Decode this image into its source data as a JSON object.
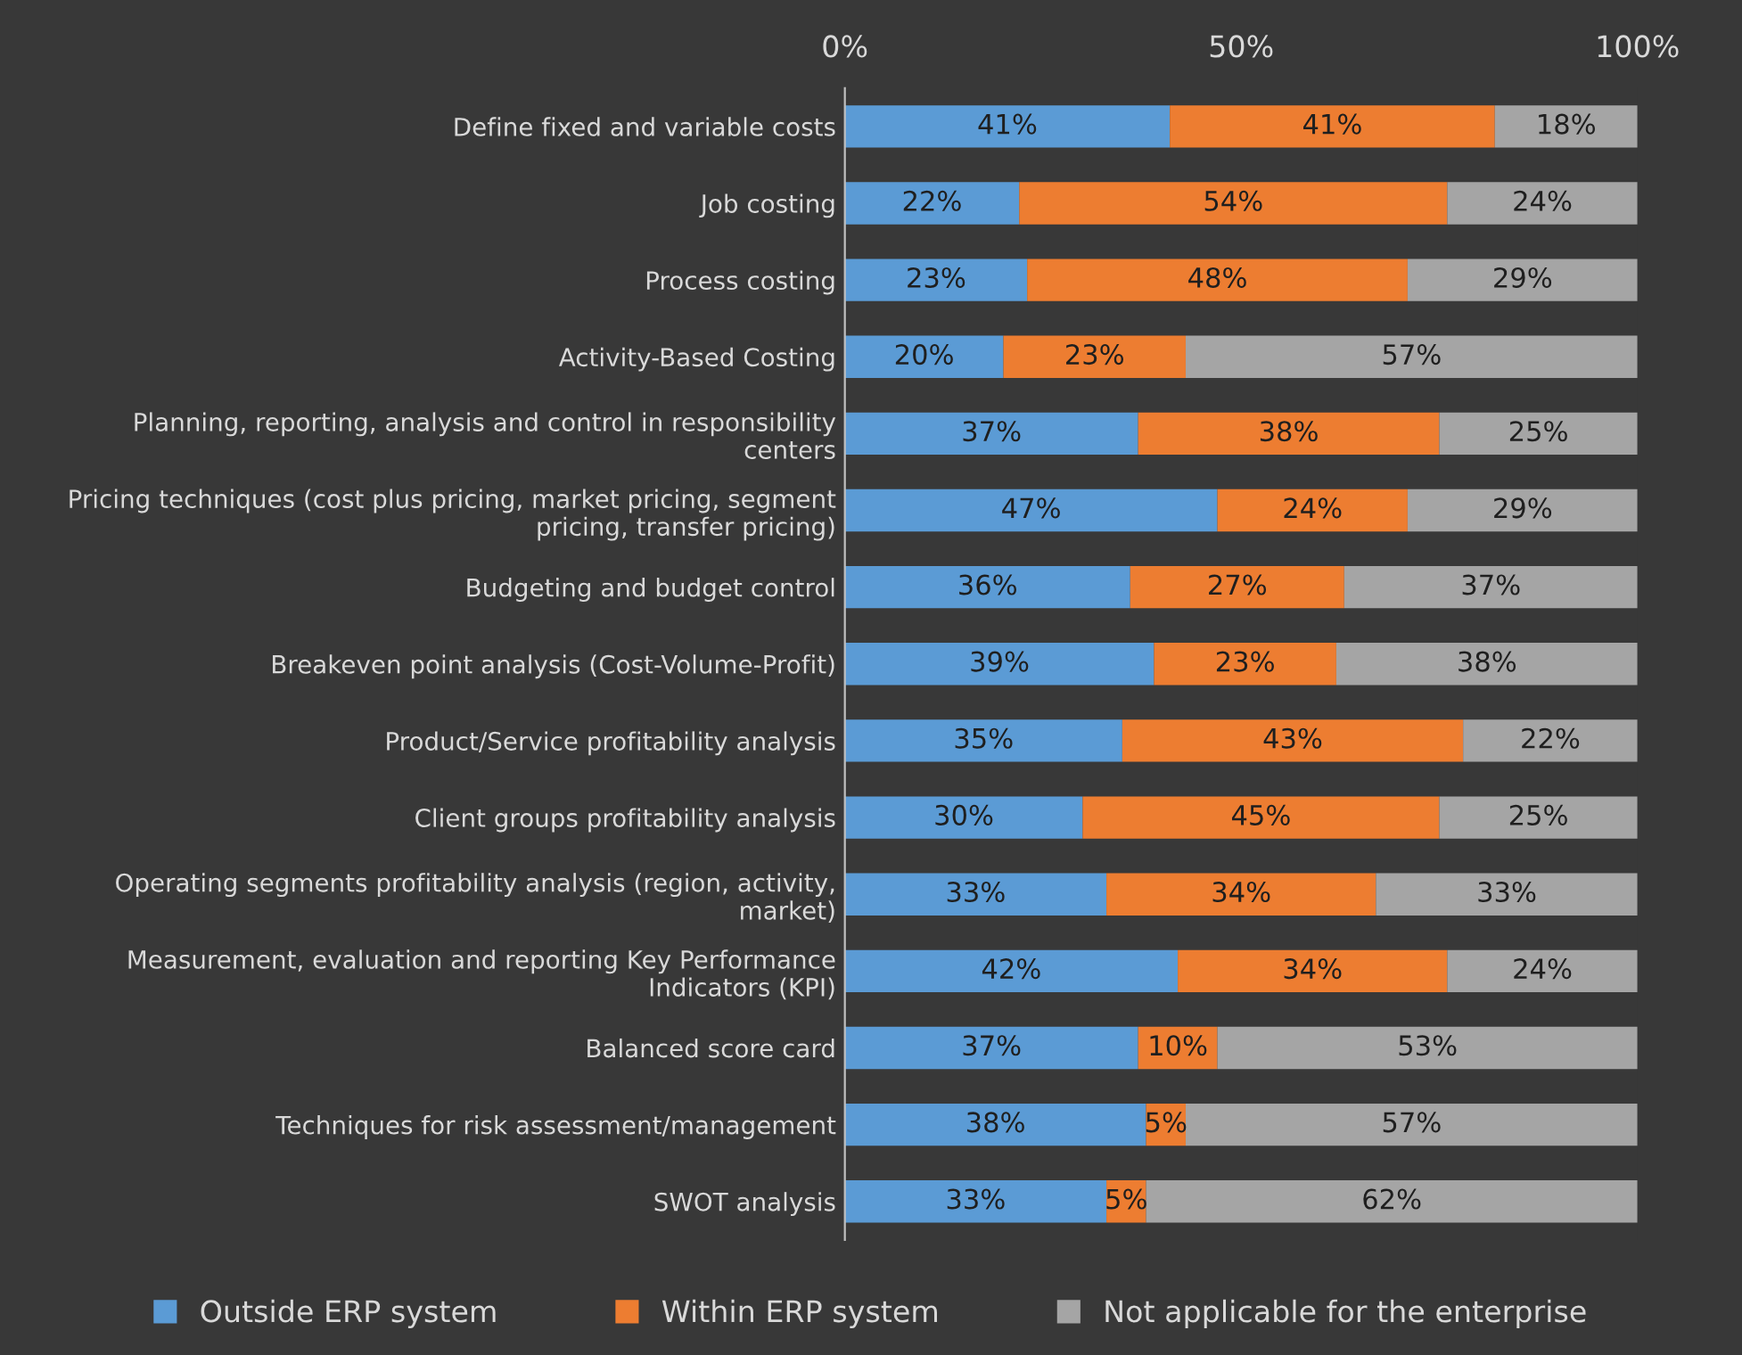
{
  "chart_data": {
    "type": "bar",
    "orientation": "horizontal",
    "stacked": true,
    "categories": [
      "Define fixed and variable costs",
      "Job costing",
      "Process costing",
      "Activity-Based Costing",
      "Planning, reporting, analysis and control in responsibility centers",
      "Pricing techniques (cost plus pricing, market pricing, segment pricing, transfer pricing)",
      "Budgeting and budget control",
      "Breakeven point analysis (Cost-Volume-Profit)",
      "Product/Service profitability analysis",
      "Client groups profitability analysis",
      "Operating segments profitability analysis (region, activity, market)",
      "Measurement, evaluation and reporting Key Performance Indicators (KPI)",
      "Balanced score card",
      "Techniques for risk assessment/management",
      "SWOT analysis"
    ],
    "series": [
      {
        "name": "Outside ERP system",
        "color": "#5b9bd5",
        "values": [
          41,
          22,
          23,
          20,
          37,
          47,
          36,
          39,
          35,
          30,
          33,
          42,
          37,
          38,
          33
        ],
        "value_labels": [
          "41%",
          "22%",
          "23%",
          "20%",
          "37%",
          "47%",
          "36%",
          "39%",
          "35%",
          "30%",
          "33%",
          "42%",
          "37%",
          "38%",
          "33%"
        ]
      },
      {
        "name": "Within ERP system",
        "color": "#ed7d31",
        "values": [
          41,
          54,
          48,
          23,
          38,
          24,
          27,
          23,
          43,
          45,
          34,
          34,
          10,
          5,
          5
        ],
        "value_labels": [
          "41%",
          "54%",
          "48%",
          "23%",
          "38%",
          "24%",
          "27%",
          "23%",
          "43%",
          "45%",
          "34%",
          "34%",
          "10%",
          "5%",
          "5%"
        ]
      },
      {
        "name": "Not applicable for the enterprise",
        "color": "#a5a5a5",
        "values": [
          18,
          24,
          29,
          57,
          25,
          29,
          37,
          38,
          22,
          25,
          33,
          24,
          53,
          57,
          62
        ],
        "value_labels": [
          "18%",
          "24%",
          "29%",
          "57%",
          "25%",
          "29%",
          "37%",
          "38%",
          "22%",
          "25%",
          "33%",
          "24%",
          "53%",
          "57%",
          "62%"
        ]
      }
    ],
    "xlim": [
      0,
      100
    ],
    "xticks": [
      {
        "value": 0,
        "label": "0%"
      },
      {
        "value": 50,
        "label": "50%"
      },
      {
        "value": 100,
        "label": "100%"
      }
    ],
    "grid": false,
    "legend": "bottom"
  }
}
